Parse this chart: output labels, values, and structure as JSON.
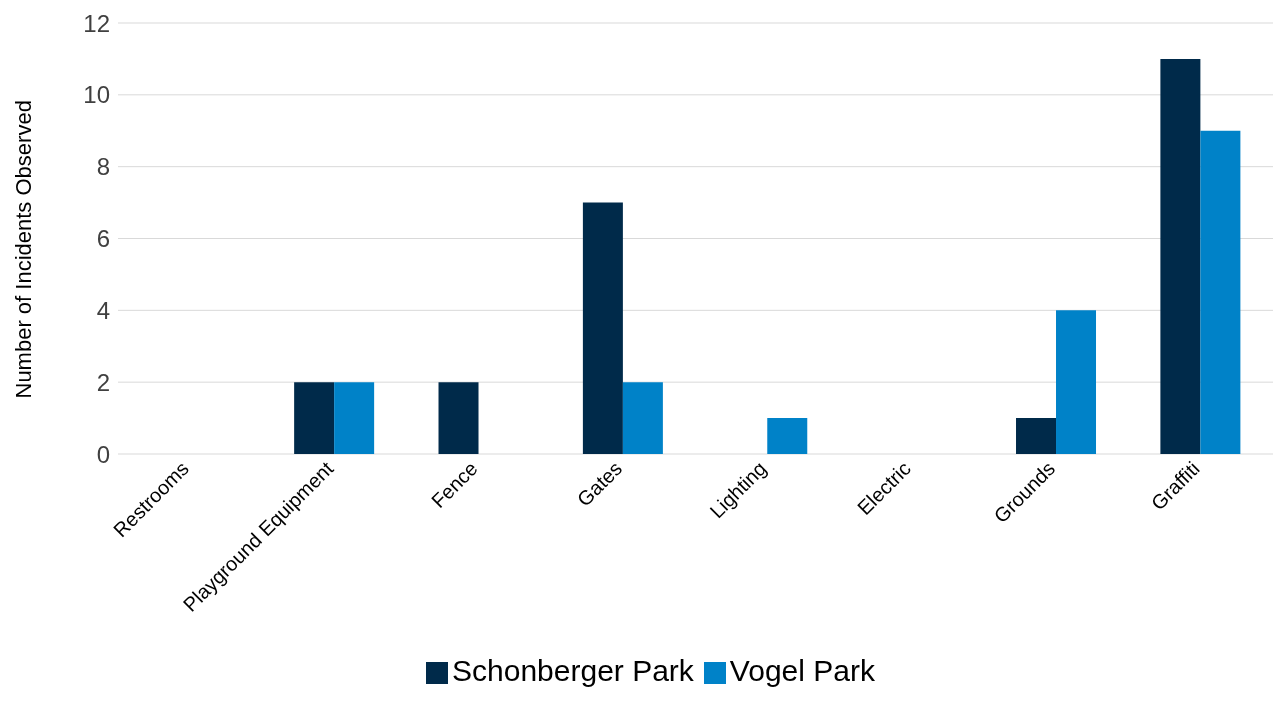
{
  "chart_data": {
    "type": "bar",
    "ylabel": "Number of Incidents Observed",
    "categories": [
      "Restrooms",
      "Playground Equipment",
      "Fence",
      "Gates",
      "Lighting",
      "Electric",
      "Grounds",
      "Graffiti"
    ],
    "series": [
      {
        "name": "Schonberger Park",
        "color": "#002a4a",
        "values": [
          0,
          2,
          2,
          7,
          0,
          0,
          1,
          11
        ]
      },
      {
        "name": "Vogel Park",
        "color": "#0082c8",
        "values": [
          0,
          2,
          0,
          2,
          1,
          0,
          4,
          9
        ]
      }
    ],
    "ylim": [
      0,
      12
    ],
    "yticks": [
      0,
      2,
      4,
      6,
      8,
      10,
      12
    ],
    "grid": "y",
    "legend": "bottom"
  }
}
